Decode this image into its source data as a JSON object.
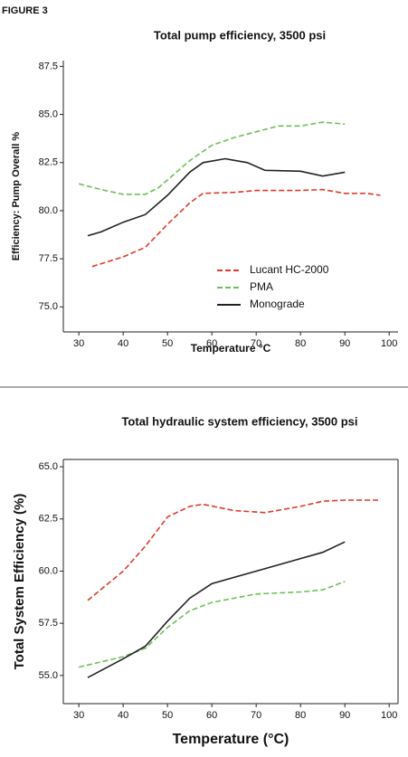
{
  "figure_label": "FIGURE 3",
  "chart_data": [
    {
      "type": "line",
      "title": "Total pump efficiency, 3500 psi",
      "x_label": "Temperature °C",
      "y_label": "Efficiency: Pump Overall %",
      "xlim": [
        26.5,
        102
      ],
      "ylim": [
        73.7,
        87.8
      ],
      "xticks": [
        30,
        40,
        50,
        60,
        70,
        80,
        90,
        100
      ],
      "yticks": [
        {
          "value": 75,
          "label": "75.0"
        },
        {
          "value": 77.5,
          "label": "77.5"
        },
        {
          "value": 80,
          "label": "80.0"
        },
        {
          "value": 82.5,
          "label": "82.5"
        },
        {
          "value": 85,
          "label": "85.0"
        },
        {
          "value": 87.5,
          "label": "87.5"
        }
      ],
      "legend": "lower right",
      "box": false,
      "series": [
        {
          "name": "Lucant HC-2000",
          "color": "#e0392b",
          "dash": true,
          "x": [
            33,
            40,
            45,
            50,
            55,
            58,
            65,
            70,
            80,
            85,
            90,
            95,
            98
          ],
          "values": [
            77.1,
            77.6,
            78.1,
            79.3,
            80.4,
            80.9,
            80.95,
            81.05,
            81.05,
            81.1,
            80.9,
            80.9,
            80.8
          ]
        },
        {
          "name": "PMA",
          "color": "#6cbf5a",
          "dash": true,
          "x": [
            30,
            35,
            40,
            45,
            48,
            52,
            55,
            60,
            65,
            70,
            75,
            80,
            85,
            90
          ],
          "values": [
            81.4,
            81.1,
            80.85,
            80.85,
            81.2,
            82.0,
            82.6,
            83.4,
            83.8,
            84.1,
            84.4,
            84.4,
            84.6,
            84.5
          ]
        },
        {
          "name": "Monograde",
          "color": "#222222",
          "dash": false,
          "x": [
            32,
            35,
            40,
            45,
            50,
            55,
            58,
            63,
            68,
            72,
            80,
            85,
            90
          ],
          "values": [
            78.7,
            78.9,
            79.4,
            79.8,
            80.8,
            82.0,
            82.5,
            82.7,
            82.5,
            82.1,
            82.05,
            81.8,
            82.0
          ]
        }
      ]
    },
    {
      "type": "line",
      "title": "Total hydraulic system efficiency, 3500 psi",
      "x_label": "Temperature (°C)",
      "y_label": "Total System Efficiency (%)",
      "xlim": [
        26.5,
        102
      ],
      "ylim": [
        53.65,
        65.35
      ],
      "xticks": [
        30,
        40,
        50,
        60,
        70,
        80,
        90,
        100
      ],
      "yticks": [
        {
          "value": 55,
          "label": "55.0"
        },
        {
          "value": 57.5,
          "label": "57.5"
        },
        {
          "value": 60,
          "label": "60.0"
        },
        {
          "value": 62.5,
          "label": "62.5"
        },
        {
          "value": 65,
          "label": "65.0"
        }
      ],
      "box": true,
      "series": [
        {
          "color": "#e0392b",
          "dash": true,
          "x": [
            32,
            40,
            45,
            50,
            55,
            58,
            65,
            72,
            80,
            85,
            90,
            98
          ],
          "values": [
            58.6,
            60.0,
            61.2,
            62.6,
            63.1,
            63.2,
            62.9,
            62.8,
            63.1,
            63.35,
            63.4,
            63.4
          ]
        },
        {
          "color": "#6cbf5a",
          "dash": true,
          "x": [
            30,
            40,
            45,
            50,
            55,
            60,
            70,
            80,
            85,
            90
          ],
          "values": [
            55.4,
            55.9,
            56.3,
            57.3,
            58.1,
            58.5,
            58.9,
            59.0,
            59.1,
            59.5
          ]
        },
        {
          "color": "#222222",
          "dash": false,
          "x": [
            32,
            40,
            45,
            50,
            55,
            60,
            70,
            80,
            85,
            90
          ],
          "values": [
            54.9,
            55.8,
            56.4,
            57.6,
            58.7,
            59.4,
            60.0,
            60.6,
            60.9,
            61.4
          ]
        }
      ]
    }
  ]
}
